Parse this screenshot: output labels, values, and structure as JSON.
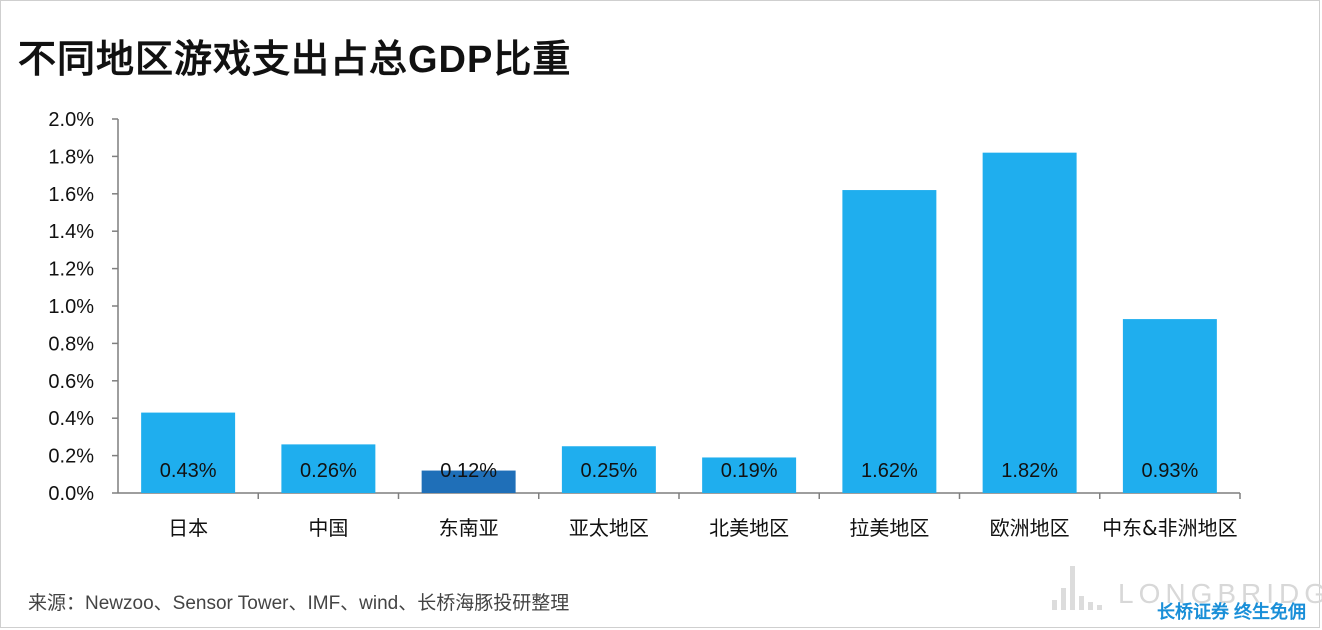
{
  "header": {
    "title": "不同地区游戏支出占总GDP比重"
  },
  "footer": {
    "source": "来源：Newzoo、Sensor Tower、IMF、wind、长桥海豚投研整理",
    "brand_slogan": "长桥证券 终生免佣",
    "watermark_brand": "LONGBRIDGE"
  },
  "colors": {
    "bar": "#1FAEEE",
    "highlight_bar": "#1F6FB8"
  },
  "chart_data": {
    "type": "bar",
    "categories": [
      "日本",
      "中国",
      "东南亚",
      "亚太地区",
      "北美地区",
      "拉美地区",
      "欧洲地区",
      "中东&非洲地区"
    ],
    "values": [
      0.43,
      0.26,
      0.12,
      0.25,
      0.19,
      1.62,
      1.82,
      0.93
    ],
    "data_labels": [
      "0.43%",
      "0.26%",
      "0.12%",
      "0.25%",
      "0.19%",
      "1.62%",
      "1.82%",
      "0.93%"
    ],
    "highlight_index": 2,
    "ylim": [
      0,
      2.0
    ],
    "yticks": [
      "0.0%",
      "0.2%",
      "0.4%",
      "0.6%",
      "0.8%",
      "1.0%",
      "1.2%",
      "1.4%",
      "1.6%",
      "1.8%",
      "2.0%"
    ],
    "grid": false,
    "legend": "none"
  }
}
